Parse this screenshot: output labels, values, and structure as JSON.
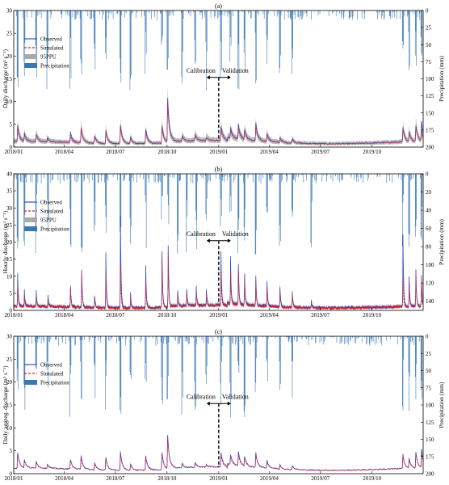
{
  "chart_data": [
    {
      "type": "line",
      "panel_label": "(a)",
      "ylabel": "Daily discharge (m³ s⁻¹)",
      "y2label": "Precipitation (mm)",
      "ylim": [
        0,
        30
      ],
      "yticks": [
        0,
        5,
        10,
        15,
        20,
        25,
        30
      ],
      "y2lim": [
        0,
        200
      ],
      "y2ticks": [
        0,
        25,
        50,
        75,
        100,
        125,
        150,
        175,
        200
      ],
      "xticks": [
        "2018/01",
        "2018/04",
        "2018/07",
        "2018/10",
        "2019/01",
        "2019/04",
        "2019/07",
        "2019/10"
      ],
      "legend": [
        "Observed",
        "Simulated",
        "95PPU",
        "Precipitation"
      ],
      "annotation": {
        "left": "Calibration",
        "right": "Validation",
        "split_date": "2019/01"
      },
      "band": true,
      "band_width_factor": 1.0,
      "step": "daily",
      "peaks": [
        {
          "date": "2018-01-08",
          "obs": 4.8,
          "sim": 4.3
        },
        {
          "date": "2018-01-20",
          "obs": 3.0,
          "sim": 2.7
        },
        {
          "date": "2018-02-10",
          "obs": 2.8,
          "sim": 2.9
        },
        {
          "date": "2018-03-02",
          "obs": 2.2,
          "sim": 2.0
        },
        {
          "date": "2018-04-12",
          "obs": 3.3,
          "sim": 2.6
        },
        {
          "date": "2018-05-01",
          "obs": 4.1,
          "sim": 4.3
        },
        {
          "date": "2018-05-25",
          "obs": 2.5,
          "sim": 2.3
        },
        {
          "date": "2018-06-14",
          "obs": 3.6,
          "sim": 3.5
        },
        {
          "date": "2018-07-10",
          "obs": 4.9,
          "sim": 4.6
        },
        {
          "date": "2018-07-28",
          "obs": 2.2,
          "sim": 2.1
        },
        {
          "date": "2018-08-24",
          "obs": 4.0,
          "sim": 3.5
        },
        {
          "date": "2018-09-22",
          "obs": 4.8,
          "sim": 4.5
        },
        {
          "date": "2018-10-02",
          "obs": 10.6,
          "sim": 9.6
        },
        {
          "date": "2018-10-28",
          "obs": 2.4,
          "sim": 2.5
        },
        {
          "date": "2018-11-20",
          "obs": 2.6,
          "sim": 2.8
        },
        {
          "date": "2018-12-10",
          "obs": 2.0,
          "sim": 2.2
        },
        {
          "date": "2019-01-05",
          "obs": 4.6,
          "sim": 4.2
        },
        {
          "date": "2019-01-22",
          "obs": 4.4,
          "sim": 3.8
        },
        {
          "date": "2019-02-05",
          "obs": 5.0,
          "sim": 4.2
        },
        {
          "date": "2019-02-16",
          "obs": 3.8,
          "sim": 3.6
        },
        {
          "date": "2019-03-08",
          "obs": 5.3,
          "sim": 4.6
        },
        {
          "date": "2019-03-28",
          "obs": 3.0,
          "sim": 2.8
        },
        {
          "date": "2019-04-20",
          "obs": 2.1,
          "sim": 2.0
        },
        {
          "date": "2019-05-12",
          "obs": 1.9,
          "sim": 1.8
        },
        {
          "date": "2019-11-25",
          "obs": 4.3,
          "sim": 4.1
        },
        {
          "date": "2019-12-06",
          "obs": 3.3,
          "sim": 3.2
        },
        {
          "date": "2019-12-18",
          "obs": 4.7,
          "sim": 4.9
        },
        {
          "date": "2019-12-28",
          "obs": 5.5,
          "sim": 3.4
        }
      ]
    },
    {
      "type": "line",
      "panel_label": "(b)",
      "ylabel": "Hourly discharge (m³ s⁻¹)",
      "y2label": "Precipitation (mm)",
      "ylim": [
        0,
        40
      ],
      "yticks": [
        0,
        5,
        10,
        15,
        20,
        25,
        30,
        35,
        40
      ],
      "y2lim": [
        0,
        150
      ],
      "y2ticks": [
        0,
        20,
        40,
        60,
        80,
        100,
        120,
        140
      ],
      "xticks": [
        "2018/01",
        "2018/04",
        "2018/07",
        "2018/10",
        "2019/01",
        "2019/04",
        "2019/07",
        "2019/10"
      ],
      "legend": [
        "Observed",
        "Simulated",
        "95PPU",
        "Precipitation"
      ],
      "annotation": {
        "left": "Calibration",
        "right": "Validation",
        "split_date": "2019/01"
      },
      "band": true,
      "band_width_factor": 1.0,
      "step": "hourly",
      "peaks": [
        {
          "date": "2018-01-08",
          "obs": 11.0,
          "sim": 7.0
        },
        {
          "date": "2018-01-20",
          "obs": 6.0,
          "sim": 4.5
        },
        {
          "date": "2018-02-10",
          "obs": 5.5,
          "sim": 4.0
        },
        {
          "date": "2018-03-03",
          "obs": 4.5,
          "sim": 3.5
        },
        {
          "date": "2018-04-12",
          "obs": 7.5,
          "sim": 7.0
        },
        {
          "date": "2018-05-02",
          "obs": 12.0,
          "sim": 11.0
        },
        {
          "date": "2018-05-25",
          "obs": 4.5,
          "sim": 4.0
        },
        {
          "date": "2018-06-14",
          "obs": 16.8,
          "sim": 10.5
        },
        {
          "date": "2018-07-10",
          "obs": 27.7,
          "sim": 13.5
        },
        {
          "date": "2018-07-28",
          "obs": 5.0,
          "sim": 4.0
        },
        {
          "date": "2018-08-24",
          "obs": 13.3,
          "sim": 9.0
        },
        {
          "date": "2018-09-22",
          "obs": 17.0,
          "sim": 15.5
        },
        {
          "date": "2018-10-03",
          "obs": 19.3,
          "sim": 17.5
        },
        {
          "date": "2018-10-20",
          "obs": 6.0,
          "sim": 5.0
        },
        {
          "date": "2018-11-05",
          "obs": 6.5,
          "sim": 5.5
        },
        {
          "date": "2018-11-22",
          "obs": 7.0,
          "sim": 6.0
        },
        {
          "date": "2018-12-10",
          "obs": 6.0,
          "sim": 5.0
        },
        {
          "date": "2019-01-05",
          "obs": 17.5,
          "sim": 12.0
        },
        {
          "date": "2019-01-22",
          "obs": 15.6,
          "sim": 11.0
        },
        {
          "date": "2019-02-05",
          "obs": 14.0,
          "sim": 12.0
        },
        {
          "date": "2019-02-16",
          "obs": 11.0,
          "sim": 9.5
        },
        {
          "date": "2019-03-08",
          "obs": 10.5,
          "sim": 9.0
        },
        {
          "date": "2019-03-28",
          "obs": 9.0,
          "sim": 7.5
        },
        {
          "date": "2019-04-20",
          "obs": 7.0,
          "sim": 6.5
        },
        {
          "date": "2019-05-12",
          "obs": 5.5,
          "sim": 5.0
        },
        {
          "date": "2019-06-15",
          "obs": 3.0,
          "sim": 2.5
        },
        {
          "date": "2019-11-25",
          "obs": 22.5,
          "sim": 10.0
        },
        {
          "date": "2019-12-06",
          "obs": 10.0,
          "sim": 8.5
        },
        {
          "date": "2019-12-18",
          "obs": 12.0,
          "sim": 11.0
        },
        {
          "date": "2019-12-28",
          "obs": 10.5,
          "sim": 9.0
        }
      ]
    },
    {
      "type": "line",
      "panel_label": "(c)",
      "ylabel": "Daily aggreg. discharge (m³ s⁻¹)",
      "y2label": "Precipitation (mm)",
      "ylim": [
        0,
        30
      ],
      "yticks": [
        0,
        5,
        10,
        15,
        20,
        25,
        30
      ],
      "y2lim": [
        0,
        200
      ],
      "y2ticks": [
        0,
        25,
        50,
        75,
        100,
        125,
        150,
        175,
        200
      ],
      "xticks": [
        "2018/01",
        "2018/04",
        "2018/07",
        "2018/10",
        "2019/01",
        "2019/04",
        "2019/07",
        "2019/10"
      ],
      "legend": [
        "Observed",
        "Simulated",
        "Precipitation"
      ],
      "annotation": {
        "left": "Calibration",
        "right": "Validation",
        "split_date": "2019/01"
      },
      "band": false,
      "band_width_factor": 0,
      "step": "daily",
      "peaks": [
        {
          "date": "2018-01-08",
          "obs": 4.7,
          "sim": 4.4
        },
        {
          "date": "2018-01-20",
          "obs": 3.0,
          "sim": 2.8
        },
        {
          "date": "2018-02-10",
          "obs": 2.8,
          "sim": 2.7
        },
        {
          "date": "2018-03-02",
          "obs": 2.1,
          "sim": 2.0
        },
        {
          "date": "2018-04-12",
          "obs": 3.2,
          "sim": 3.1
        },
        {
          "date": "2018-05-01",
          "obs": 4.0,
          "sim": 3.6
        },
        {
          "date": "2018-05-25",
          "obs": 2.4,
          "sim": 2.2
        },
        {
          "date": "2018-06-14",
          "obs": 3.5,
          "sim": 3.3
        },
        {
          "date": "2018-07-10",
          "obs": 4.8,
          "sim": 4.3
        },
        {
          "date": "2018-07-28",
          "obs": 2.2,
          "sim": 2.0
        },
        {
          "date": "2018-08-24",
          "obs": 3.9,
          "sim": 3.5
        },
        {
          "date": "2018-09-22",
          "obs": 4.6,
          "sim": 4.3
        },
        {
          "date": "2018-10-02",
          "obs": 8.3,
          "sim": 7.8
        },
        {
          "date": "2018-10-28",
          "obs": 2.3,
          "sim": 2.2
        },
        {
          "date": "2018-11-20",
          "obs": 2.5,
          "sim": 2.4
        },
        {
          "date": "2018-12-10",
          "obs": 2.0,
          "sim": 1.9
        },
        {
          "date": "2019-01-05",
          "obs": 4.5,
          "sim": 4.0
        },
        {
          "date": "2019-01-22",
          "obs": 4.2,
          "sim": 3.7
        },
        {
          "date": "2019-02-05",
          "obs": 4.8,
          "sim": 4.1
        },
        {
          "date": "2019-02-16",
          "obs": 3.7,
          "sim": 3.4
        },
        {
          "date": "2019-03-08",
          "obs": 4.6,
          "sim": 4.2
        },
        {
          "date": "2019-03-28",
          "obs": 2.9,
          "sim": 2.7
        },
        {
          "date": "2019-04-20",
          "obs": 2.0,
          "sim": 1.9
        },
        {
          "date": "2019-05-12",
          "obs": 1.8,
          "sim": 1.7
        },
        {
          "date": "2019-11-25",
          "obs": 4.2,
          "sim": 3.9
        },
        {
          "date": "2019-12-06",
          "obs": 3.2,
          "sim": 3.0
        },
        {
          "date": "2019-12-18",
          "obs": 4.6,
          "sim": 4.4
        },
        {
          "date": "2019-12-28",
          "obs": 5.3,
          "sim": 4.5
        }
      ]
    }
  ],
  "colors": {
    "observed": "#2b4fd0",
    "simulated": "#e41a1c",
    "band": "#a9a9a9",
    "precip": "#3a78b5"
  }
}
